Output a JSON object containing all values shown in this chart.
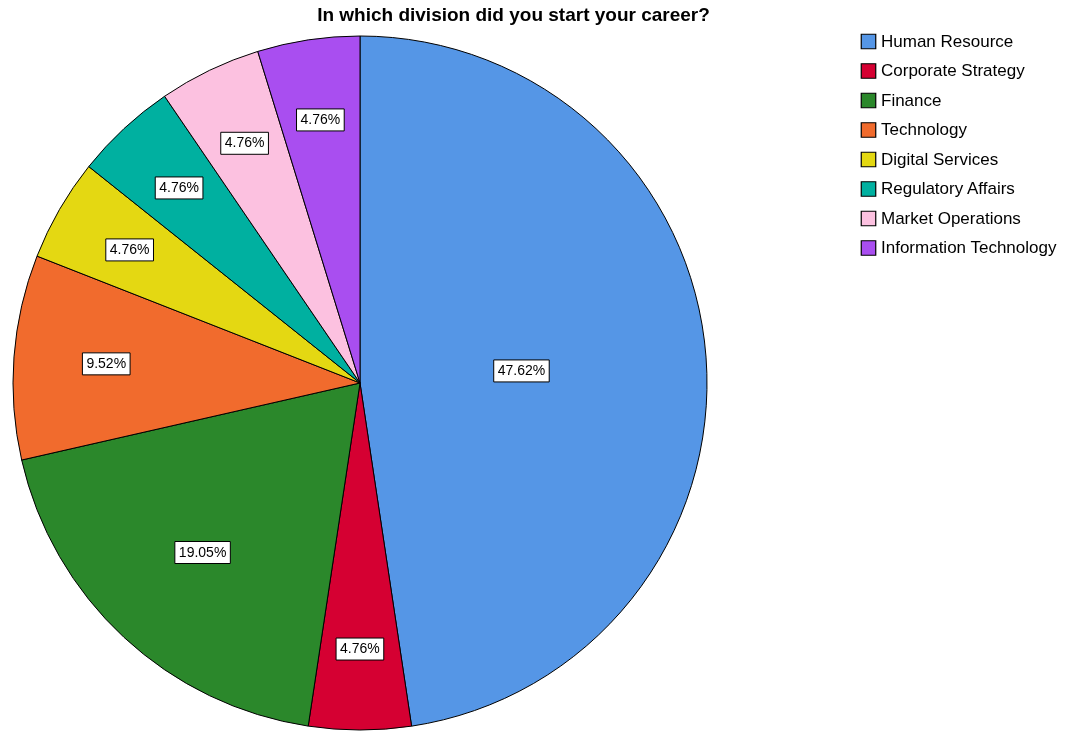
{
  "chart_data": {
    "type": "pie",
    "title": "In which division did you start your career?",
    "categories": [
      "Human Resource",
      "Corporate Strategy",
      "Finance",
      "Technology",
      "Digital Services",
      "Regulatory Affairs",
      "Market Operations",
      "Information Technology"
    ],
    "values": [
      47.62,
      4.76,
      19.05,
      9.52,
      4.76,
      4.76,
      4.76,
      4.76
    ],
    "colors": [
      "#5596e6",
      "#d50032",
      "#2b882b",
      "#f16b2d",
      "#e4d812",
      "#00b0a0",
      "#fcc1e0",
      "#a94ef0"
    ],
    "value_labels": [
      "47.62%",
      "4.76%",
      "19.05%",
      "9.52%",
      "4.76%",
      "4.76%",
      "4.76%",
      "4.76%"
    ],
    "legend": "top right"
  }
}
